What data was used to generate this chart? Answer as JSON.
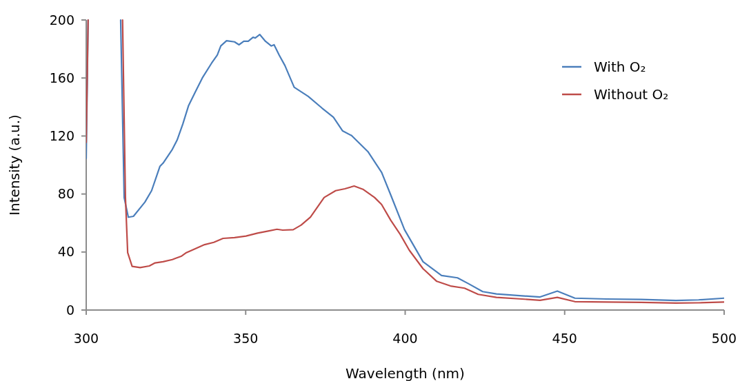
{
  "chart_data": {
    "type": "line",
    "xlabel": "Wavelength (nm)",
    "ylabel": "Intensity (a.u.)",
    "xlim": [
      300,
      500
    ],
    "xticks": [
      300,
      350,
      400,
      450,
      500
    ],
    "ylim": [
      0,
      200
    ],
    "yticks": [
      0,
      40,
      80,
      120,
      160,
      200
    ],
    "grid": false,
    "legend": "top right",
    "marker": "none",
    "line_style": "solid",
    "series": [
      {
        "name": "With O₂",
        "color": "#4a7ebb",
        "x": [
          300,
          300.6,
          305,
          310.8,
          311.9,
          313.2,
          314.8,
          318.4,
          320.5,
          323.1,
          324.1,
          327,
          328.5,
          330.3,
          332.1,
          334.2,
          336.4,
          339.3,
          341.1,
          342.2,
          344,
          346.5,
          347.9,
          349.4,
          350.8,
          352.3,
          353,
          354.4,
          356.2,
          358,
          358.9,
          360.5,
          362.3,
          365.2,
          369.6,
          373.9,
          377.5,
          380.4,
          383.2,
          388.3,
          392.6,
          395.5,
          399.8,
          405.6,
          411.4,
          416.4,
          420,
          424.3,
          428.6,
          436.6,
          442.3,
          447.7,
          453.2,
          463.2,
          474,
          484.9,
          492,
          500
        ],
        "values": [
          104.5,
          200,
          null,
          200,
          77.6,
          64,
          64.6,
          74.4,
          82.3,
          99,
          101.3,
          110.8,
          117.2,
          128.3,
          141,
          150.4,
          160,
          170.2,
          175.8,
          182.1,
          185.7,
          184.9,
          182.9,
          185.3,
          185.3,
          188.1,
          187.6,
          190,
          185.3,
          182.1,
          182.9,
          175.8,
          168.6,
          153.6,
          147.3,
          139.3,
          133,
          123.5,
          120.3,
          109.3,
          95,
          79.2,
          55.4,
          33.3,
          23.8,
          22.2,
          18,
          12.7,
          11.1,
          9.8,
          9,
          13.1,
          8.2,
          7.6,
          7.3,
          6.6,
          7,
          8.2
        ]
      },
      {
        "name": "Without O₂",
        "color": "#be4b48",
        "x": [
          300,
          300.6,
          305,
          311.4,
          312.3,
          313,
          314.4,
          316.9,
          319.8,
          321.6,
          324.1,
          327,
          329.9,
          331.4,
          334.2,
          337.1,
          340,
          342.9,
          346.5,
          350.1,
          353.7,
          357.3,
          359.8,
          361.6,
          364.9,
          367.4,
          370.3,
          374.6,
          378.2,
          381.1,
          384,
          386.9,
          390.4,
          392.6,
          395.5,
          398.4,
          401.3,
          405.6,
          409.9,
          414.2,
          418.6,
          422.9,
          428.6,
          436.6,
          442.3,
          447.7,
          453.2,
          463.2,
          474,
          484.9,
          492,
          500
        ],
        "values": [
          115.6,
          200,
          null,
          200,
          77.6,
          39.6,
          30.1,
          29.3,
          30.4,
          32.5,
          33.3,
          34.8,
          37.2,
          39.6,
          42.3,
          45.1,
          46.7,
          49.4,
          49.9,
          51,
          53,
          54.6,
          55.7,
          55.1,
          55.4,
          58.6,
          64.1,
          77.6,
          82.3,
          83.6,
          85.5,
          83.1,
          77.6,
          72.8,
          61.8,
          52.3,
          41.2,
          28.5,
          19.8,
          16.6,
          15.1,
          10.8,
          8.7,
          7.6,
          6.7,
          8.7,
          5.8,
          5.5,
          5.3,
          4.8,
          5,
          5.5
        ]
      }
    ]
  }
}
